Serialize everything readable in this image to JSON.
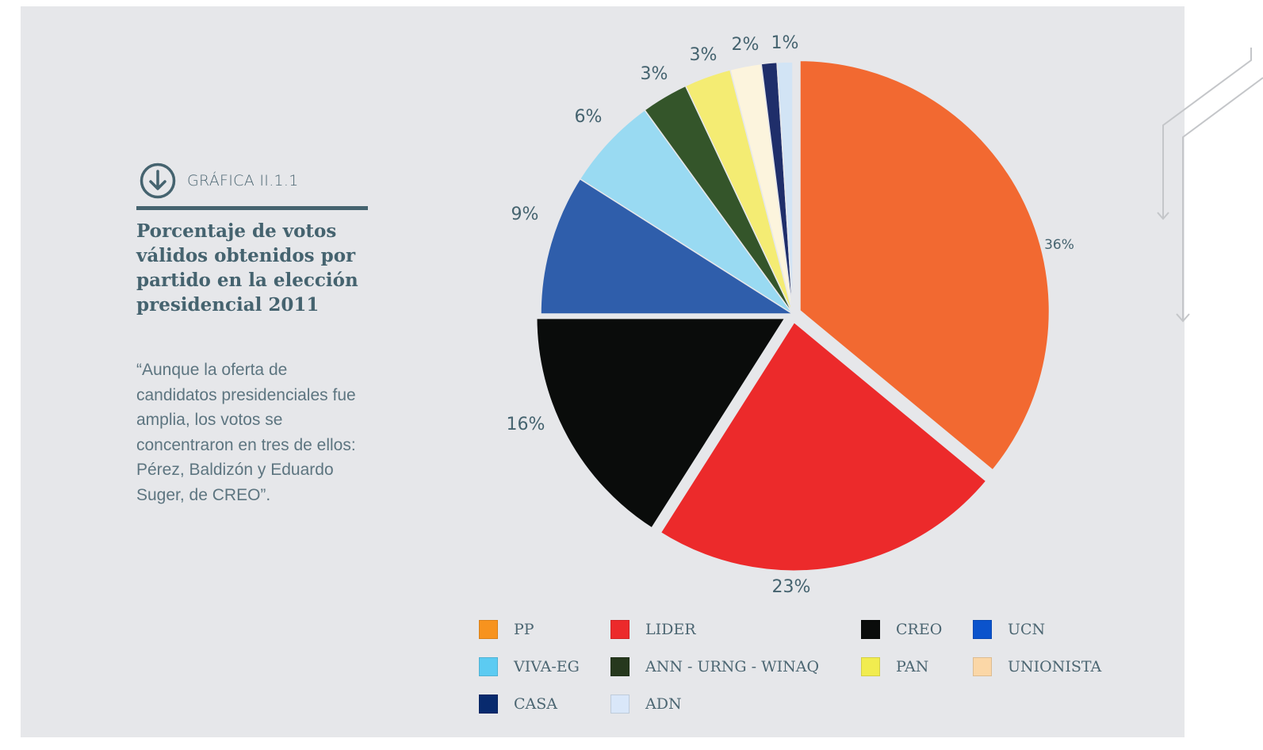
{
  "figure": {
    "label": "GRÁFICA II.1.1",
    "title": "Porcentaje de votos válidos obtenidos por partido en la elección presidencial 2011",
    "quote": "“Aunque la oferta de candidatos presidenciales fue amplia, los votos se concentraron en tres de ellos: Pérez, Baldizón y Eduardo Suger, de CREO”.",
    "icon": "arrow-down-circle-icon",
    "accent_color": "#45636f"
  },
  "chart_data": {
    "type": "pie",
    "title": "Porcentaje de votos válidos obtenidos por partido en la elección presidencial 2011",
    "slices": [
      {
        "party": "PP",
        "value": 36,
        "label": "36%",
        "color": "#f26931"
      },
      {
        "party": "LIDER",
        "value": 23,
        "label": "23%",
        "color": "#ec2a2b"
      },
      {
        "party": "CREO",
        "value": 16,
        "label": "16%",
        "color": "#0a0c0b"
      },
      {
        "party": "UCN",
        "value": 9,
        "label": "9%",
        "color": "#2f5eab"
      },
      {
        "party": "VIVA-EG",
        "value": 6,
        "label": "6%",
        "color": "#99daf2"
      },
      {
        "party": "ANN - URNG - WINAQ",
        "value": 3,
        "label": "3%",
        "color": "#34552a"
      },
      {
        "party": "PAN",
        "value": 3,
        "label": "3%",
        "color": "#f4ec73"
      },
      {
        "party": "UNIONISTA",
        "value": 2,
        "label": "2%",
        "color": "#fcf4dd"
      },
      {
        "party": "CASA",
        "value": 1,
        "label": "1%",
        "color": "#1f2e6a"
      },
      {
        "party": "ADN",
        "value": 1,
        "label": "",
        "color": "#d2e4f5"
      }
    ],
    "legend": [
      {
        "label": "PP",
        "color": "#f7931e"
      },
      {
        "label": "LIDER",
        "color": "#ec2a2b"
      },
      {
        "label": "CREO",
        "color": "#0a0c0b"
      },
      {
        "label": "UCN",
        "color": "#0b53cc"
      },
      {
        "label": "VIVA-EG",
        "color": "#5ccbf2"
      },
      {
        "label": "ANN - URNG - WINAQ",
        "color": "#26381d"
      },
      {
        "label": "PAN",
        "color": "#f1ec4f"
      },
      {
        "label": "UNIONISTA",
        "color": "#fbd7a7"
      },
      {
        "label": "CASA",
        "color": "#082a6e"
      },
      {
        "label": "ADN",
        "color": "#d9e7f9"
      }
    ],
    "legend_placement": "bottom"
  }
}
